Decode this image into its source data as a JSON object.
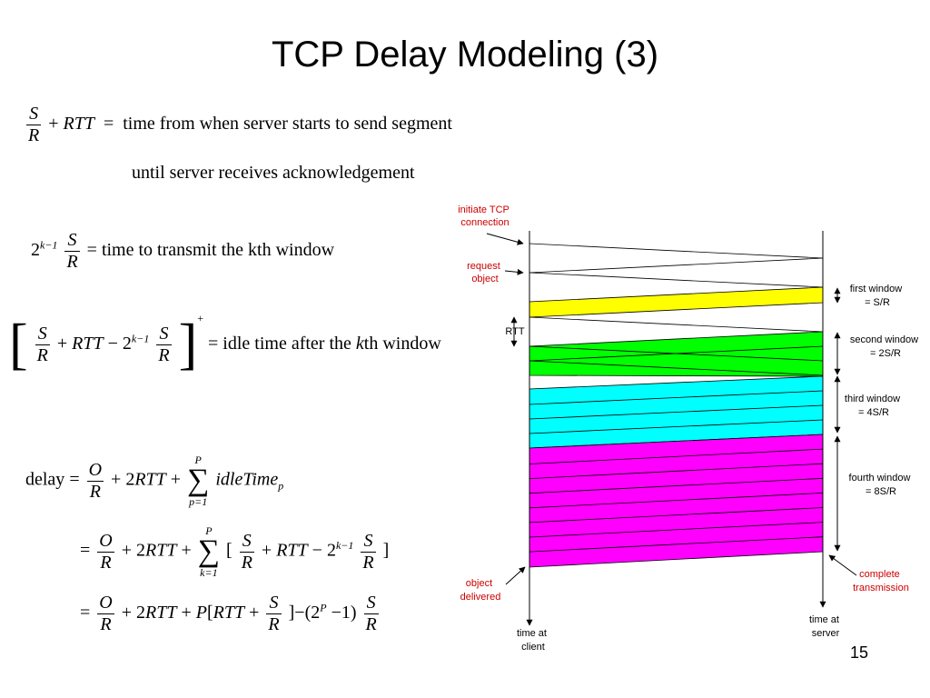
{
  "slide": {
    "title": "TCP Delay Modeling (3)",
    "page_number": "15"
  },
  "equations": {
    "eq1": {
      "S": "S",
      "R": "R",
      "plus": "+",
      "rtt": "RTT",
      "eq": "=",
      "line1": "time from when server starts to send segment",
      "line2": "until server receives acknowledgement"
    },
    "eq2": {
      "base": "2",
      "exp": "k−1",
      "S": "S",
      "R": "R",
      "eq": "=",
      "text": "time to transmit the kth window"
    },
    "eq3": {
      "lbr": "[",
      "rbr": "]",
      "plus_sup": "+",
      "S": "S",
      "R": "R",
      "plus": "+",
      "rtt": "RTT",
      "minus": "−",
      "base": "2",
      "exp": "k−1",
      "eq": "=",
      "text_a": "idle time after the ",
      "k": "k",
      "text_b": "th window"
    },
    "eq4": {
      "delay": "delay",
      "eq": "=",
      "O": "O",
      "R": "R",
      "plus": "+",
      "two": "2",
      "rtt": "RTT",
      "sigma_top": "P",
      "sigma_bot": "p=1",
      "sigma": "∑",
      "idle": "idleTime",
      "idle_sub": "p"
    },
    "eq5": {
      "eq": "=",
      "O": "O",
      "R": "R",
      "plus": "+",
      "two": "2",
      "rtt": "RTT",
      "sigma_top": "P",
      "sigma_bot": "k=1",
      "sigma": "∑",
      "lb": "[",
      "S": "S",
      "rtt2": "RTT",
      "minus": "−",
      "base": "2",
      "exp": "k−1",
      "rb": "]"
    },
    "eq6": {
      "eq": "=",
      "O": "O",
      "R": "R",
      "plus": "+",
      "two": "2",
      "rtt": "RTT",
      "P": "P",
      "lb": "[",
      "rtt2": "RTT",
      "S": "S",
      "rb": "]",
      "minus": "−",
      "open": "(",
      "base": "2",
      "expP": "P",
      "minus1": "−1",
      "close": ")"
    }
  },
  "diagram": {
    "colors": {
      "first_window": "#ffff00",
      "second_window": "#00ff00",
      "third_window": "#00ffff",
      "fourth_window": "#ff00ff",
      "red_label": "#cc0000"
    },
    "labels": {
      "initiate_tcp": [
        "initiate TCP",
        "connection"
      ],
      "request_object": [
        "request",
        "object"
      ],
      "rtt": "RTT",
      "object_delivered": [
        "object",
        "delivered"
      ],
      "time_at_client": [
        "time at",
        "client"
      ],
      "time_at_server": [
        "time at",
        "server"
      ],
      "first_window": [
        "first window",
        "= S/R"
      ],
      "second_window": [
        "second window",
        "= 2S/R"
      ],
      "third_window": [
        "third window",
        "= 4S/R"
      ],
      "fourth_window": [
        "fourth window",
        "= 8S/R"
      ],
      "complete_transmission": [
        "complete",
        "transmission"
      ]
    }
  }
}
